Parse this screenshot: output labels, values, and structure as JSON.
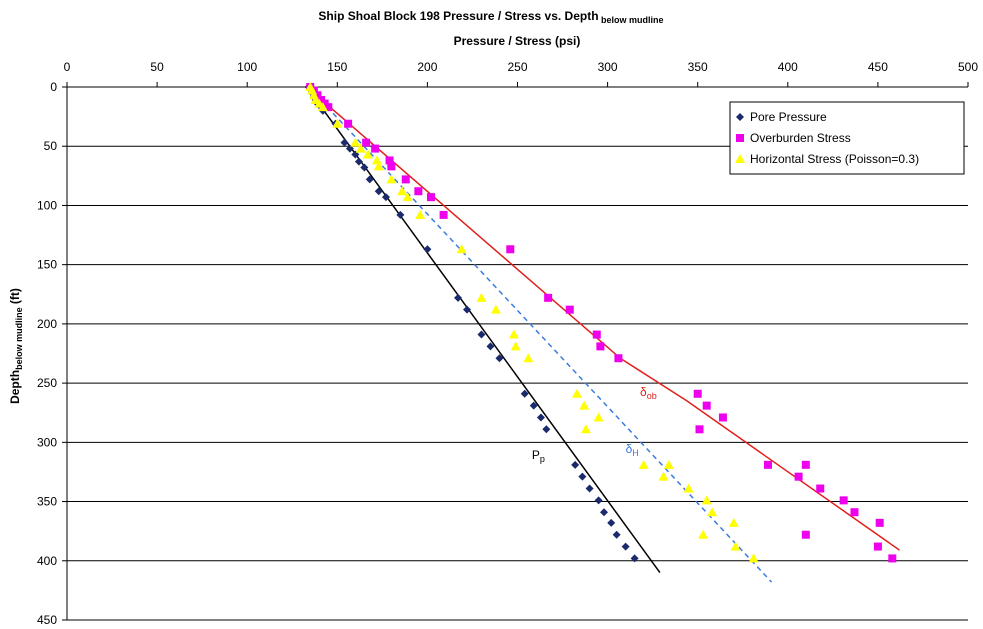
{
  "chart_data": {
    "type": "scatter",
    "title": "Ship Shoal Block 198 Pressure / Stress vs. Depth",
    "title_subscript": "below mudline",
    "xlabel": "Pressure / Stress (psi)",
    "ylabel": "Depth",
    "ylabel_subscript": "below mudline",
    "ylabel_unit": " (ft)",
    "x_axis_position": "top",
    "y_axis_reversed": true,
    "xlim": [
      0,
      500
    ],
    "ylim": [
      0,
      450
    ],
    "x_ticks": [
      0,
      50,
      100,
      150,
      200,
      250,
      300,
      350,
      400,
      450,
      500
    ],
    "y_ticks": [
      0,
      50,
      100,
      150,
      200,
      250,
      300,
      350,
      400,
      450
    ],
    "grid": "horizontal",
    "legend_position": "top-right",
    "series": [
      {
        "name": "Pore Pressure",
        "marker": "diamond",
        "color": "#1a2a6c",
        "points": [
          [
            134,
            0
          ],
          [
            135,
            2
          ],
          [
            136,
            5
          ],
          [
            137,
            8
          ],
          [
            138,
            11
          ],
          [
            139,
            14
          ],
          [
            141,
            17
          ],
          [
            142,
            20
          ],
          [
            149,
            31
          ],
          [
            154,
            47
          ],
          [
            157,
            52
          ],
          [
            160,
            57
          ],
          [
            162,
            63
          ],
          [
            165,
            68
          ],
          [
            168,
            78
          ],
          [
            173,
            88
          ],
          [
            177,
            93
          ],
          [
            185,
            108
          ],
          [
            200,
            137
          ],
          [
            217,
            178
          ],
          [
            222,
            188
          ],
          [
            230,
            209
          ],
          [
            235,
            219
          ],
          [
            240,
            229
          ],
          [
            254,
            259
          ],
          [
            259,
            269
          ],
          [
            263,
            279
          ],
          [
            266,
            289
          ],
          [
            282,
            319
          ],
          [
            286,
            329
          ],
          [
            290,
            339
          ],
          [
            295,
            349
          ],
          [
            298,
            359
          ],
          [
            302,
            368
          ],
          [
            305,
            378
          ],
          [
            310,
            388
          ],
          [
            315,
            398
          ]
        ],
        "trendline": [
          [
            133,
            0
          ],
          [
            329,
            410
          ]
        ],
        "trend_style": "solid",
        "trend_color": "#000000"
      },
      {
        "name": "Overburden Stress",
        "marker": "square",
        "color": "#ee00ee",
        "points": [
          [
            135,
            0
          ],
          [
            137,
            3
          ],
          [
            139,
            7
          ],
          [
            141,
            11
          ],
          [
            143,
            14
          ],
          [
            145,
            17
          ],
          [
            156,
            31
          ],
          [
            166,
            47
          ],
          [
            171,
            52
          ],
          [
            179,
            62
          ],
          [
            180,
            67
          ],
          [
            188,
            78
          ],
          [
            195,
            88
          ],
          [
            202,
            93
          ],
          [
            209,
            108
          ],
          [
            246,
            137
          ],
          [
            267,
            178
          ],
          [
            279,
            188
          ],
          [
            294,
            209
          ],
          [
            296,
            219
          ],
          [
            306,
            229
          ],
          [
            350,
            259
          ],
          [
            355,
            269
          ],
          [
            364,
            279
          ],
          [
            351,
            289
          ],
          [
            389,
            319
          ],
          [
            410,
            319
          ],
          [
            406,
            329
          ],
          [
            418,
            339
          ],
          [
            431,
            349
          ],
          [
            437,
            359
          ],
          [
            451,
            368
          ],
          [
            410,
            378
          ],
          [
            450,
            388
          ],
          [
            458,
            398
          ]
        ],
        "trendline": [
          [
            133,
            0
          ],
          [
            307,
            229
          ],
          [
            344,
            265
          ],
          [
            462,
            391
          ]
        ],
        "trend_style": "solid",
        "trend_color": "#e0201c"
      },
      {
        "name": "Horizontal Stress (Poisson=0.3)",
        "marker": "triangle",
        "color": "#ffff00",
        "points": [
          [
            135,
            0
          ],
          [
            136,
            3
          ],
          [
            137,
            7
          ],
          [
            138,
            11
          ],
          [
            140,
            14
          ],
          [
            142,
            17
          ],
          [
            150,
            31
          ],
          [
            160,
            47
          ],
          [
            163,
            52
          ],
          [
            167,
            57
          ],
          [
            172,
            62
          ],
          [
            173,
            67
          ],
          [
            180,
            78
          ],
          [
            186,
            88
          ],
          [
            189,
            93
          ],
          [
            196,
            108
          ],
          [
            219,
            137
          ],
          [
            230,
            178
          ],
          [
            238,
            188
          ],
          [
            248,
            209
          ],
          [
            249,
            219
          ],
          [
            256,
            229
          ],
          [
            283,
            259
          ],
          [
            287,
            269
          ],
          [
            295,
            279
          ],
          [
            288,
            289
          ],
          [
            320,
            319
          ],
          [
            334,
            319
          ],
          [
            331,
            329
          ],
          [
            345,
            339
          ],
          [
            355,
            349
          ],
          [
            358,
            359
          ],
          [
            370,
            368
          ],
          [
            353,
            378
          ],
          [
            371,
            388
          ],
          [
            381,
            398
          ]
        ],
        "trendline": [
          [
            134,
            0
          ],
          [
            391,
            418
          ]
        ],
        "trend_style": "dashed",
        "trend_color": "#3a7be0"
      }
    ],
    "annotations": [
      {
        "text": "P",
        "sub": "p",
        "x": 258,
        "y": 314,
        "color": "#000000"
      },
      {
        "text": "δ",
        "sub": "ob",
        "x": 318,
        "y": 261,
        "color": "#e0201c"
      },
      {
        "text": "δ",
        "sub": "H",
        "x": 310,
        "y": 309,
        "color": "#3a7be0"
      }
    ]
  }
}
